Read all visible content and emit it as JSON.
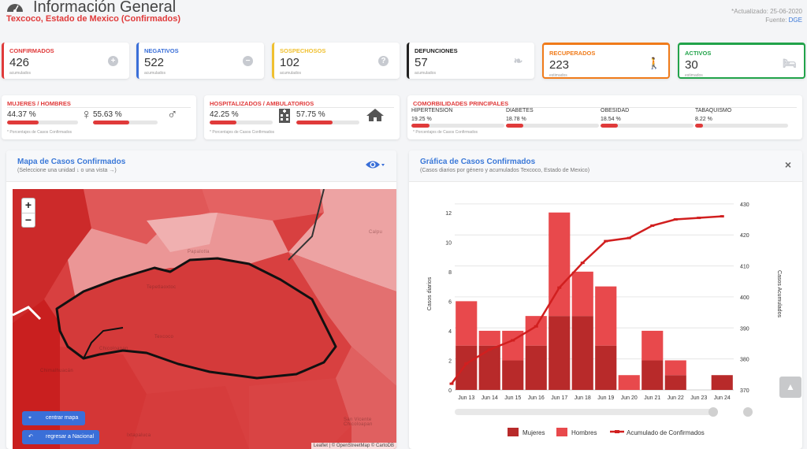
{
  "header": {
    "title": "Información General",
    "subtitle": "Texcoco, Estado de Mexico (Confirmados)",
    "updated": "*Actualizado: 25-06-2020",
    "source_label": "Fuente:",
    "source": "DGE"
  },
  "stats": [
    {
      "label": "CONFIRMADOS",
      "value": "426",
      "sub": "acumulados",
      "color": "#e03a3a",
      "icon": "plus-icon"
    },
    {
      "label": "NEGATIVOS",
      "value": "522",
      "sub": "acumulados",
      "color": "#3a6fd8",
      "icon": "minus-icon"
    },
    {
      "label": "SOSPECHOSOS",
      "value": "102",
      "sub": "acumulados",
      "color": "#f0c030",
      "icon": "question-icon"
    },
    {
      "label": "DEFUNCIONES",
      "value": "57",
      "sub": "acumulados",
      "color": "#222222",
      "icon": "ribbon-icon"
    },
    {
      "label": "RECUPERADOS",
      "value": "223",
      "sub": "estimados",
      "color": "#f07b1a",
      "icon": "walking-icon"
    },
    {
      "label": "ACTIVOS",
      "value": "30",
      "sub": "estimados",
      "color": "#22a34a",
      "icon": "bed-icon"
    }
  ],
  "gender": {
    "label": "MUJERES / HOMBRES",
    "women_pct": "44.37 %",
    "men_pct": "55.63 %",
    "women_value": 44.37,
    "men_value": 55.63,
    "footnote": "* Porcentajes de Casos Confirmados"
  },
  "hospital": {
    "label": "HOSPITALIZADOS / AMBULATORIOS",
    "hosp_pct": "42.25 %",
    "amb_pct": "57.75 %",
    "hosp_value": 42.25,
    "amb_value": 57.75,
    "footnote": "* Porcentajes de Casos Confirmados"
  },
  "comorbidities": {
    "label": "COMORBILIDADES PRINCIPALES",
    "items": [
      {
        "name": "HIPERTENSION",
        "pct": "19.25 %",
        "value": 19.25
      },
      {
        "name": "DIABETES",
        "pct": "18.78 %",
        "value": 18.78
      },
      {
        "name": "OBESIDAD",
        "pct": "18.54 %",
        "value": 18.54
      },
      {
        "name": "TABAQUISMO",
        "pct": "8.22 %",
        "value": 8.22
      }
    ],
    "footnote": "* Porcentajes de Casos Confirmados"
  },
  "map_panel": {
    "title": "Mapa de Casos Confirmados",
    "subtitle": "(Seleccione una unidad ↓ o una vista →)",
    "zoom_in": "+",
    "zoom_out": "−",
    "center_button": "centrar mapa",
    "national_button": "regresar a Nacional",
    "attribution": "Leaflet | © OpenStreetMap © CartoDB",
    "places": [
      "Papalotla",
      "Calpu",
      "Tepetlaoxtoc",
      "Texcoco",
      "Chimalhuacán",
      "Ixtapaluca",
      "Chicoloapan",
      "San Vicente Chicoloapan"
    ]
  },
  "chart_panel": {
    "title": "Gráfica de Casos Confirmados",
    "subtitle": "(Casos diarios por género y acumulados Texcoco, Estado de Mexico)",
    "close": "×"
  },
  "chart_data": {
    "type": "bar",
    "categories": [
      "Jun 13",
      "Jun 14",
      "Jun 15",
      "Jun 16",
      "Jun 17",
      "Jun 18",
      "Jun 19",
      "Jun 20",
      "Jun 21",
      "Jun 22",
      "Jun 23",
      "Jun 24"
    ],
    "series": [
      {
        "name": "Mujeres",
        "values": [
          3,
          3,
          2,
          3,
          5,
          5,
          3,
          0,
          2,
          1,
          0,
          1
        ],
        "color": "#b82a2a"
      },
      {
        "name": "Hombres",
        "values": [
          3,
          1,
          2,
          2,
          7,
          3,
          4,
          1,
          2,
          1,
          0,
          0
        ],
        "color": "#e8494c"
      },
      {
        "name": "Acumulado de Confirmados",
        "axis": "right",
        "values": [
          378.5,
          383,
          386,
          390.5,
          403,
          411,
          418,
          419,
          423,
          425,
          425.5,
          426
        ],
        "start_value": 372,
        "color": "#d11f1f"
      }
    ],
    "ylabel": "Casos diarios",
    "ylabel_right": "Casos Acumulados",
    "ylim": [
      0,
      13
    ],
    "ylim_right": [
      370,
      432
    ],
    "yticks": [
      0,
      2,
      4,
      6,
      8,
      10,
      12
    ],
    "yticks_right": [
      370,
      380,
      390,
      400,
      410,
      420,
      430
    ],
    "grid": true,
    "legend": "bottom"
  }
}
